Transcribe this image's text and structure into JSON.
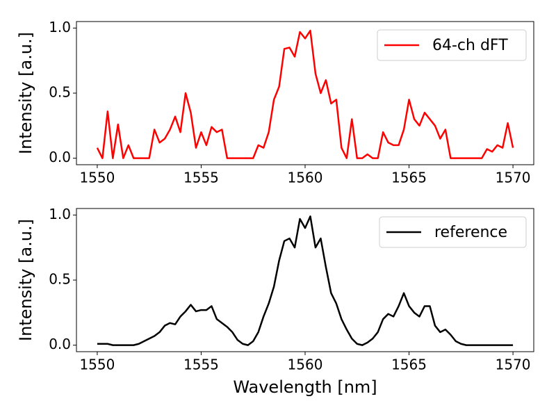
{
  "chart_data": [
    {
      "type": "line",
      "ylabel": "Intensity [a.u.]",
      "x": [
        1550,
        1550.25,
        1550.5,
        1550.75,
        1551,
        1551.25,
        1551.5,
        1551.75,
        1552,
        1552.25,
        1552.5,
        1552.75,
        1553,
        1553.25,
        1553.5,
        1553.75,
        1554,
        1554.25,
        1554.5,
        1554.75,
        1555,
        1555.25,
        1555.5,
        1555.75,
        1556,
        1556.25,
        1556.5,
        1556.75,
        1557,
        1557.25,
        1557.5,
        1557.75,
        1558,
        1558.25,
        1558.5,
        1558.75,
        1559,
        1559.25,
        1559.5,
        1559.75,
        1560,
        1560.25,
        1560.5,
        1560.75,
        1561,
        1561.25,
        1561.5,
        1561.75,
        1562,
        1562.25,
        1562.5,
        1562.75,
        1563,
        1563.25,
        1563.5,
        1563.75,
        1564,
        1564.25,
        1564.5,
        1564.75,
        1565,
        1565.25,
        1565.5,
        1565.75,
        1566,
        1566.25,
        1566.5,
        1566.75,
        1567,
        1567.25,
        1567.5,
        1567.75,
        1568,
        1568.25,
        1568.5,
        1568.75,
        1569,
        1569.25,
        1569.5,
        1569.75,
        1570
      ],
      "series": [
        {
          "name": "64-ch dFT",
          "color": "#ff0000",
          "values": [
            0.08,
            0,
            0.36,
            0,
            0.26,
            0,
            0.1,
            0,
            0,
            0,
            0,
            0.22,
            0.12,
            0.15,
            0.22,
            0.32,
            0.2,
            0.5,
            0.35,
            0.08,
            0.2,
            0.1,
            0.24,
            0.2,
            0.22,
            0,
            0,
            0,
            0,
            0,
            0,
            0.1,
            0.08,
            0.2,
            0.45,
            0.55,
            0.84,
            0.85,
            0.78,
            0.97,
            0.92,
            0.98,
            0.65,
            0.5,
            0.6,
            0.42,
            0.45,
            0.08,
            0,
            0.3,
            0,
            0,
            0.03,
            0,
            0,
            0.2,
            0.12,
            0.1,
            0.1,
            0.22,
            0.45,
            0.3,
            0.25,
            0.35,
            0.3,
            0.25,
            0.15,
            0.22,
            0,
            0,
            0,
            0,
            0,
            0,
            0,
            0.07,
            0.05,
            0.1,
            0.08,
            0.27,
            0.08
          ]
        }
      ],
      "xlim": [
        1549,
        1571
      ],
      "ylim": [
        -0.05,
        1.05
      ],
      "xticks": [
        1550,
        1555,
        1560,
        1565,
        1570
      ],
      "yticks": [
        {
          "value": 0,
          "label": "0.0"
        },
        0.5,
        {
          "value": 1,
          "label": "1.0"
        }
      ],
      "legend": "upper right",
      "grid": false
    },
    {
      "type": "line",
      "ylabel": "Intensity [a.u.]",
      "xlabel": "Wavelength [nm]",
      "x": [
        1550,
        1550.25,
        1550.5,
        1550.75,
        1551,
        1551.25,
        1551.5,
        1551.75,
        1552,
        1552.25,
        1552.5,
        1552.75,
        1553,
        1553.25,
        1553.5,
        1553.75,
        1554,
        1554.25,
        1554.5,
        1554.75,
        1555,
        1555.25,
        1555.5,
        1555.75,
        1556,
        1556.25,
        1556.5,
        1556.75,
        1557,
        1557.25,
        1557.5,
        1557.75,
        1558,
        1558.25,
        1558.5,
        1558.75,
        1559,
        1559.25,
        1559.5,
        1559.75,
        1560,
        1560.25,
        1560.5,
        1560.75,
        1561,
        1561.25,
        1561.5,
        1561.75,
        1562,
        1562.25,
        1562.5,
        1562.75,
        1563,
        1563.25,
        1563.5,
        1563.75,
        1564,
        1564.25,
        1564.5,
        1564.75,
        1565,
        1565.25,
        1565.5,
        1565.75,
        1566,
        1566.25,
        1566.5,
        1566.75,
        1567,
        1567.25,
        1567.5,
        1567.75,
        1568,
        1568.25,
        1568.5,
        1568.75,
        1569,
        1569.25,
        1569.5,
        1569.75,
        1570
      ],
      "series": [
        {
          "name": "reference",
          "color": "#000000",
          "values": [
            0.01,
            0.01,
            0.01,
            0,
            0,
            0,
            0,
            0,
            0.01,
            0.03,
            0.05,
            0.07,
            0.1,
            0.15,
            0.17,
            0.16,
            0.22,
            0.26,
            0.31,
            0.26,
            0.27,
            0.27,
            0.3,
            0.2,
            0.17,
            0.14,
            0.1,
            0.04,
            0.01,
            0,
            0.03,
            0.1,
            0.22,
            0.32,
            0.45,
            0.65,
            0.8,
            0.82,
            0.75,
            0.97,
            0.9,
            0.99,
            0.75,
            0.82,
            0.6,
            0.4,
            0.32,
            0.2,
            0.12,
            0.05,
            0.01,
            0,
            0.02,
            0.05,
            0.1,
            0.2,
            0.24,
            0.22,
            0.3,
            0.4,
            0.3,
            0.25,
            0.22,
            0.3,
            0.3,
            0.15,
            0.1,
            0.12,
            0.08,
            0.03,
            0.01,
            0,
            0,
            0,
            0,
            0,
            0,
            0,
            0,
            0,
            0
          ]
        }
      ],
      "xlim": [
        1549,
        1571
      ],
      "ylim": [
        -0.05,
        1.05
      ],
      "xticks": [
        1550,
        1555,
        1560,
        1565,
        1570
      ],
      "yticks": [
        {
          "value": 0,
          "label": "0.0"
        },
        0.5,
        {
          "value": 1,
          "label": "1.0"
        }
      ],
      "legend": "upper right",
      "grid": false
    }
  ]
}
